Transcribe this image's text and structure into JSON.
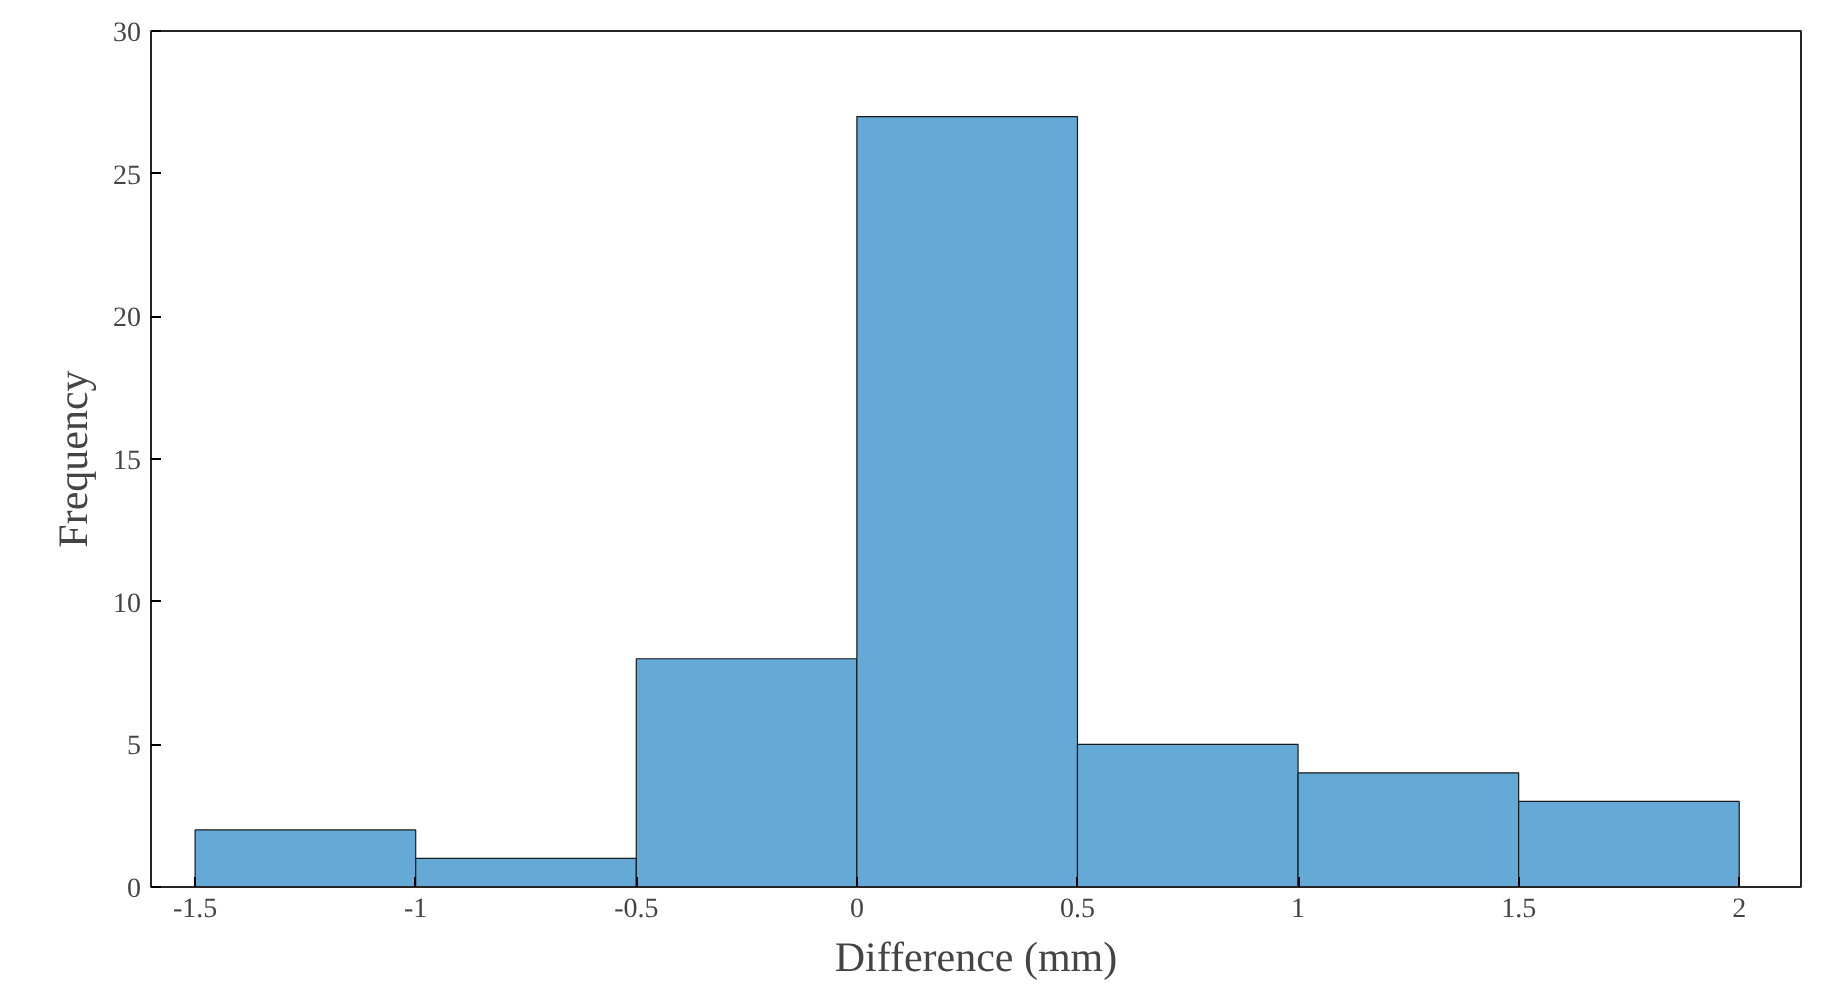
{
  "chart_data": {
    "type": "histogram",
    "xlabel": "Difference (mm)",
    "ylabel": "Frequency",
    "bins": [
      -1.5,
      -1,
      -0.5,
      0,
      0.5,
      1,
      1.5,
      2
    ],
    "values": [
      2,
      1,
      8,
      27,
      5,
      4,
      3
    ],
    "color": "#65a9d7",
    "xlim": [
      -1.6,
      2.14
    ],
    "ylim": [
      0,
      30
    ],
    "xticks": [
      -1.5,
      -1,
      -0.5,
      0,
      0.5,
      1,
      1.5,
      2
    ],
    "yticks": [
      0,
      5,
      10,
      15,
      20,
      25,
      30
    ],
    "grid": false
  }
}
